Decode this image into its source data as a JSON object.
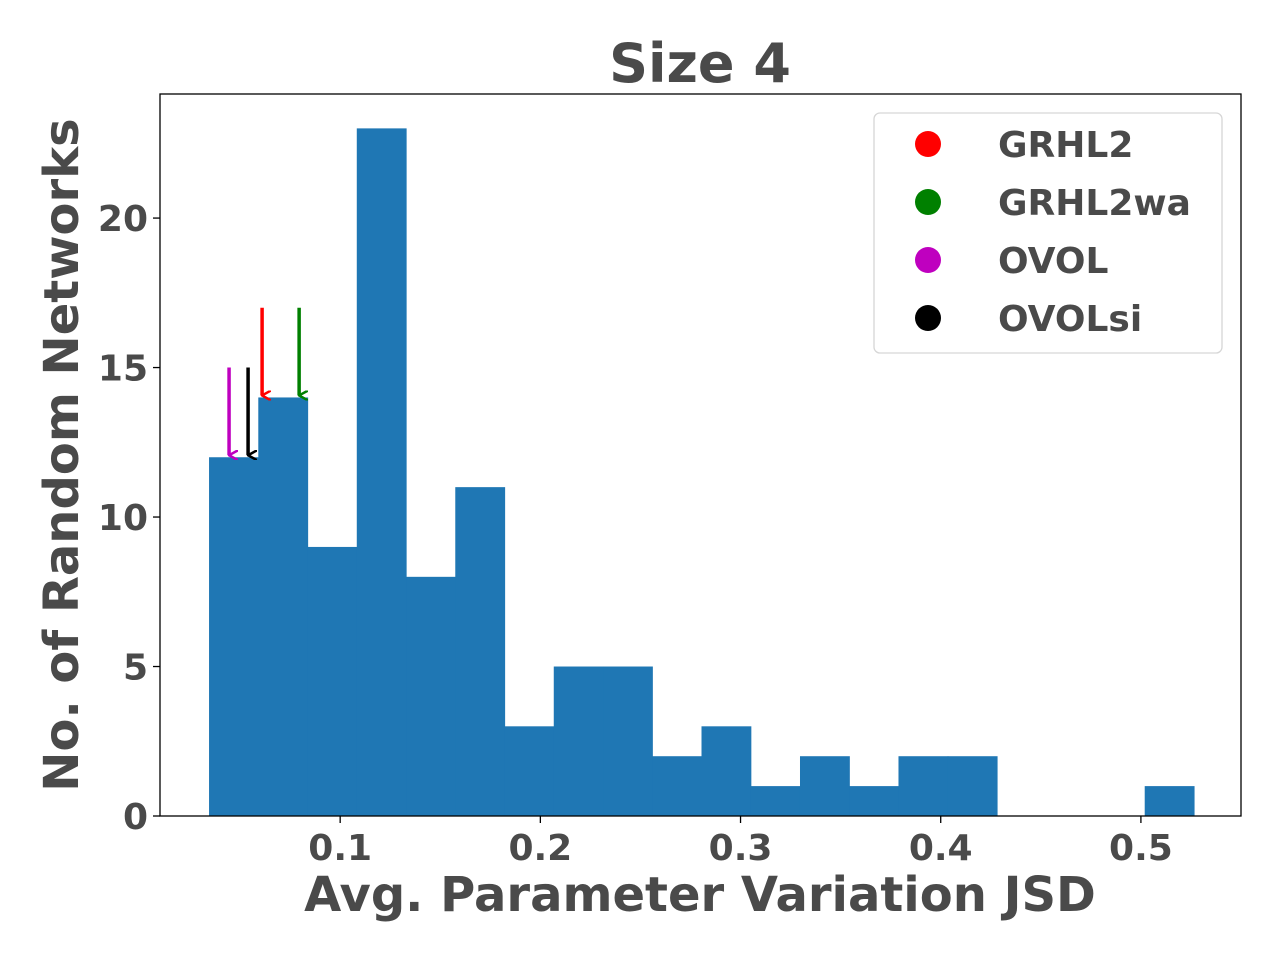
{
  "chart_data": {
    "type": "bar",
    "title": "Size 4",
    "xlabel": "Avg. Parameter Variation JSD",
    "ylabel": "No. of Random Networks",
    "xlim": [
      0.01,
      0.55
    ],
    "ylim": [
      0,
      24.15
    ],
    "xticks": [
      0.1,
      0.2,
      0.3,
      0.4,
      0.5
    ],
    "xtick_labels": [
      "0.1",
      "0.2",
      "0.3",
      "0.4",
      "0.5"
    ],
    "yticks": [
      0,
      5,
      10,
      15,
      20
    ],
    "ytick_labels": [
      "0",
      "5",
      "10",
      "15",
      "20"
    ],
    "grid": false,
    "legend_position": "top-right",
    "bar_color": "#1f77b4",
    "bins": [
      {
        "x0": 0.0345,
        "x1": 0.0591,
        "count": 12
      },
      {
        "x0": 0.0591,
        "x1": 0.0837,
        "count": 14
      },
      {
        "x0": 0.0837,
        "x1": 0.1083,
        "count": 9
      },
      {
        "x0": 0.1083,
        "x1": 0.1329,
        "count": 23
      },
      {
        "x0": 0.1329,
        "x1": 0.1575,
        "count": 8
      },
      {
        "x0": 0.1575,
        "x1": 0.1821,
        "count": 11
      },
      {
        "x0": 0.1821,
        "x1": 0.2067,
        "count": 3
      },
      {
        "x0": 0.2067,
        "x1": 0.2313,
        "count": 5
      },
      {
        "x0": 0.2313,
        "x1": 0.2559,
        "count": 5
      },
      {
        "x0": 0.2559,
        "x1": 0.2805,
        "count": 2
      },
      {
        "x0": 0.2805,
        "x1": 0.3051,
        "count": 3
      },
      {
        "x0": 0.3051,
        "x1": 0.3297,
        "count": 1
      },
      {
        "x0": 0.3297,
        "x1": 0.3543,
        "count": 2
      },
      {
        "x0": 0.3543,
        "x1": 0.3789,
        "count": 1
      },
      {
        "x0": 0.3789,
        "x1": 0.4035,
        "count": 2
      },
      {
        "x0": 0.4035,
        "x1": 0.4281,
        "count": 2
      },
      {
        "x0": 0.4281,
        "x1": 0.4527,
        "count": 0
      },
      {
        "x0": 0.4527,
        "x1": 0.4773,
        "count": 0
      },
      {
        "x0": 0.4773,
        "x1": 0.5019,
        "count": 0
      },
      {
        "x0": 0.5019,
        "x1": 0.5265,
        "count": 1
      }
    ],
    "markers": [
      {
        "name": "GRHL2",
        "color": "#ff0000",
        "x": 0.061,
        "y_from": 17,
        "y_to": 14
      },
      {
        "name": "GRHL2wa",
        "color": "#008000",
        "x": 0.0795,
        "y_from": 17,
        "y_to": 14
      },
      {
        "name": "OVOL",
        "color": "#bf00bf",
        "x": 0.0445,
        "y_from": 15,
        "y_to": 12
      },
      {
        "name": "OVOLsi",
        "color": "#000000",
        "x": 0.054,
        "y_from": 15,
        "y_to": 12
      }
    ]
  }
}
